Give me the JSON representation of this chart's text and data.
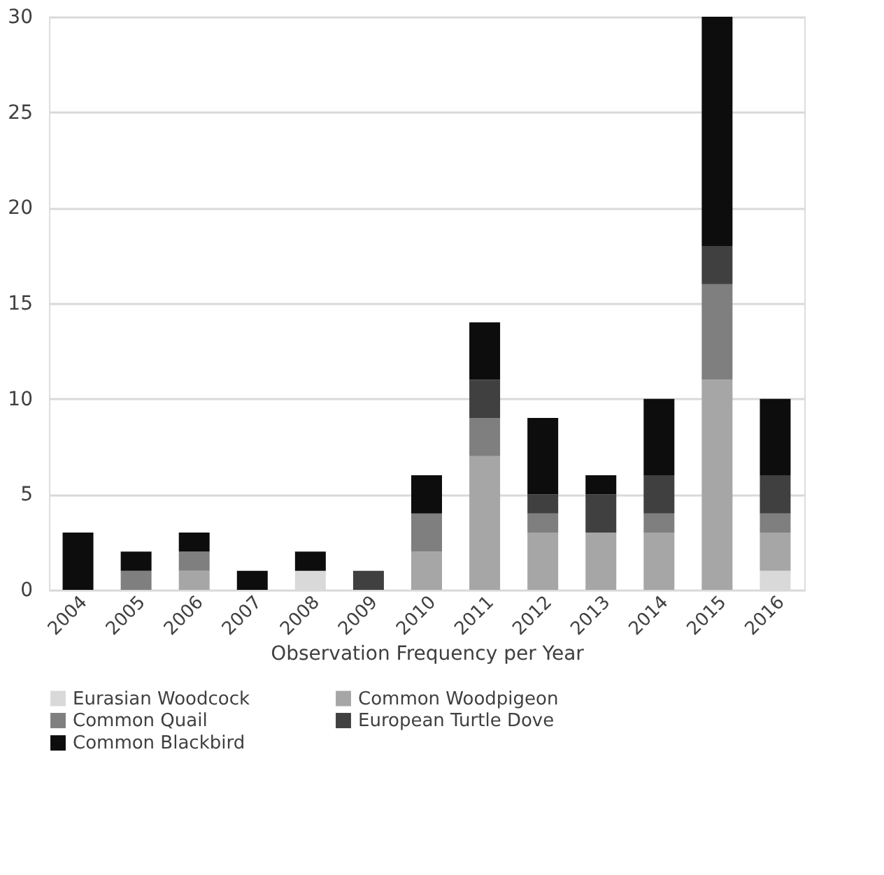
{
  "chart_data": {
    "type": "bar",
    "stacked": true,
    "xlabel": "Observation Frequency per Year",
    "categories": [
      "2004",
      "2005",
      "2006",
      "2007",
      "2008",
      "2009",
      "2010",
      "2011",
      "2012",
      "2013",
      "2014",
      "2015",
      "2016"
    ],
    "series": [
      {
        "name": "Eurasian Woodcock",
        "color": "#d9d9d9",
        "values": [
          0,
          0,
          0,
          0,
          1,
          0,
          0,
          0,
          0,
          0,
          0,
          0,
          1
        ]
      },
      {
        "name": "Common Woodpigeon",
        "color": "#a6a6a6",
        "values": [
          0,
          0,
          1,
          0,
          0,
          0,
          2,
          7,
          3,
          3,
          3,
          11,
          2
        ]
      },
      {
        "name": "Common Quail",
        "color": "#7f7f7f",
        "values": [
          0,
          1,
          1,
          0,
          0,
          0,
          2,
          2,
          1,
          0,
          1,
          5,
          1
        ]
      },
      {
        "name": "European Turtle Dove",
        "color": "#404040",
        "values": [
          0,
          0,
          0,
          0,
          0,
          1,
          0,
          2,
          1,
          2,
          2,
          2,
          2
        ]
      },
      {
        "name": "Common Blackbird",
        "color": "#0d0d0d",
        "values": [
          3,
          1,
          1,
          1,
          1,
          0,
          2,
          3,
          4,
          1,
          4,
          12,
          4
        ]
      }
    ],
    "ylim": [
      0,
      30
    ],
    "yticks": [
      0,
      5,
      10,
      15,
      20,
      25,
      30
    ],
    "grid": "y",
    "legend": "bottom"
  }
}
